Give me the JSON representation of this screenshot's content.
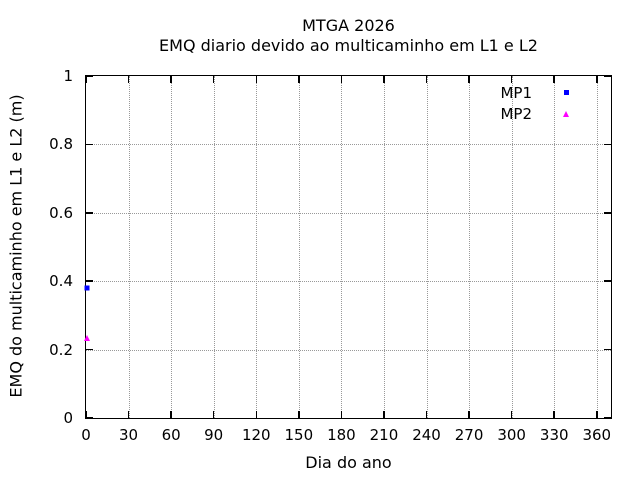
{
  "title": {
    "line1": "MTGA 2026",
    "line2": "EMQ diario devido ao multicaminho em L1 e L2"
  },
  "chart_data": {
    "type": "scatter",
    "title": "MTGA 2026",
    "subtitle": "EMQ diario devido ao multicaminho em L1 e L2",
    "xlabel": "Dia do ano",
    "ylabel": "EMQ do multicaminho em L1 e L2 (m)",
    "xlim": [
      0,
      370
    ],
    "ylim": [
      0,
      1
    ],
    "xticks": [
      0,
      30,
      60,
      90,
      120,
      150,
      180,
      210,
      240,
      270,
      300,
      330,
      360
    ],
    "yticks": [
      0,
      0.2,
      0.4,
      0.6,
      0.8,
      1
    ],
    "grid": true,
    "grid_style": "dotted",
    "legend_position": "top-right-inside",
    "series": [
      {
        "name": "MP1",
        "marker": "square",
        "color": "#0000ff",
        "points": [
          {
            "x": 1,
            "y": 0.38
          }
        ]
      },
      {
        "name": "MP2",
        "marker": "triangle",
        "color": "#ff00ff",
        "points": [
          {
            "x": 1,
            "y": 0.235
          }
        ]
      }
    ]
  },
  "colors": {
    "background": "#ffffff",
    "axis": "#000000",
    "grid": "#999999",
    "mp1": "#0000ff",
    "mp2": "#ff00ff"
  }
}
